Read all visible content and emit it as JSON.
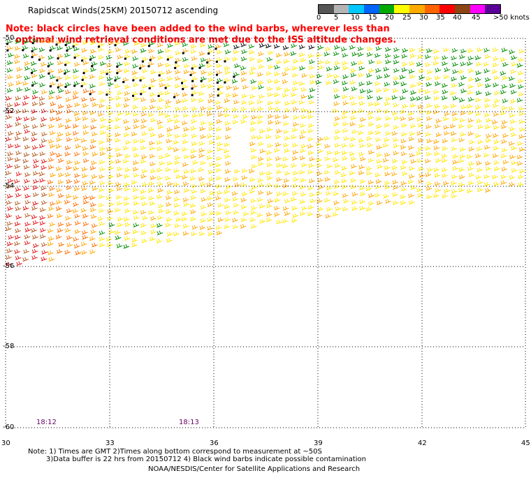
{
  "title": "Rapidscat Winds(25KM) 20150712 ascending",
  "note": {
    "line1": "Note: black circles have been added to the wind barbs, wherever less than",
    "line2": "optimal wind retrieval conditions are met due to the ISS altitude changes."
  },
  "color_scale": {
    "labels": [
      "0",
      "5",
      "10",
      "15",
      "20",
      "25",
      "30",
      "35",
      "40",
      "45",
      ">50 knots"
    ],
    "colors": [
      "#555555",
      "#b4b4b4",
      "#00c8ff",
      "#0064ff",
      "#00aa00",
      "#ffff00",
      "#ffaa00",
      "#ff6400",
      "#ff0000",
      "#8b4513",
      "#ff00ff",
      "#5a0096"
    ]
  },
  "axes": {
    "lat_labels": [
      "-50",
      "-52",
      "-54",
      "-56",
      "-58",
      "-60"
    ],
    "lon_labels": [
      "30",
      "33",
      "36",
      "39",
      "42",
      "45"
    ]
  },
  "times": [
    "18:12",
    "18:13"
  ],
  "footnotes": {
    "line1": "Note: 1) Times are GMT 2)Times along bottom correspond to measurement at ~50S",
    "line2": "3)Data buffer is 22 hrs from 20150712 4) Black wind barbs indicate possible contamination",
    "credit": "NOAA/NESDIS/Center for Satellite Applications and Research"
  }
}
